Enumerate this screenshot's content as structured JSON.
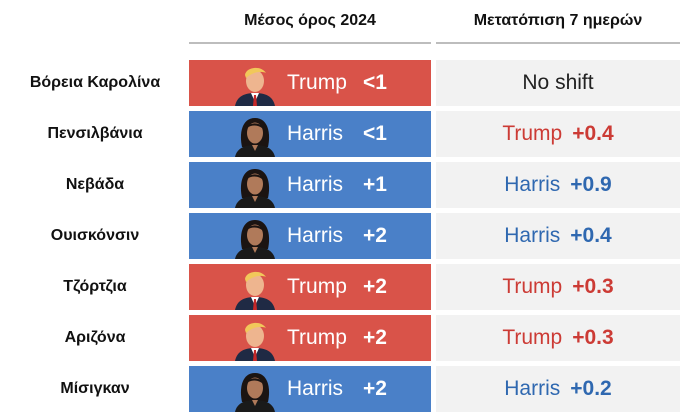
{
  "headers": {
    "average": "Μέσος όρος 2024",
    "shift": "Μετατόπιση 7 ημερών"
  },
  "colors": {
    "Trump": "#d95349",
    "Harris": "#4a80c8",
    "Trump_text": "#cc3b35",
    "Harris_text": "#2f68b0"
  },
  "rows": [
    {
      "state": "Βόρεια Καρολίνα",
      "leader": "Trump",
      "margin": "<1",
      "shift_leader": "",
      "shift_value": "",
      "shift_text": "No shift"
    },
    {
      "state": "Πενσιλβάνια",
      "leader": "Harris",
      "margin": "<1",
      "shift_leader": "Trump",
      "shift_value": "+0.4",
      "shift_text": ""
    },
    {
      "state": "Νεβάδα",
      "leader": "Harris",
      "margin": "+1",
      "shift_leader": "Harris",
      "shift_value": "+0.9",
      "shift_text": ""
    },
    {
      "state": "Ουισκόνσιν",
      "leader": "Harris",
      "margin": "+2",
      "shift_leader": "Harris",
      "shift_value": "+0.4",
      "shift_text": ""
    },
    {
      "state": "Τζόρτζια",
      "leader": "Trump",
      "margin": "+2",
      "shift_leader": "Trump",
      "shift_value": "+0.3",
      "shift_text": ""
    },
    {
      "state": "Αριζόνα",
      "leader": "Trump",
      "margin": "+2",
      "shift_leader": "Trump",
      "shift_value": "+0.3",
      "shift_text": ""
    },
    {
      "state": "Μίσιγκαν",
      "leader": "Harris",
      "margin": "+2",
      "shift_leader": "Harris",
      "shift_value": "+0.2",
      "shift_text": ""
    }
  ],
  "chart_data": {
    "type": "table",
    "columns": [
      "Μέσος όρος 2024",
      "Μετατόπιση 7 ημερών"
    ],
    "categories": [
      "Βόρεια Καρολίνα",
      "Πενσιλβάνια",
      "Νεβάδα",
      "Ουισκόνσιν",
      "Τζόρτζια",
      "Αριζόνα",
      "Μίσιγκαν"
    ],
    "average_leader": [
      "Trump",
      "Harris",
      "Harris",
      "Harris",
      "Trump",
      "Trump",
      "Harris"
    ],
    "average_margin": [
      "<1",
      "<1",
      "+1",
      "+2",
      "+2",
      "+2",
      "+2"
    ],
    "shift_leader": [
      "",
      "Trump",
      "Harris",
      "Harris",
      "Trump",
      "Trump",
      "Harris"
    ],
    "shift_value": [
      "No shift",
      "+0.4",
      "+0.9",
      "+0.4",
      "+0.3",
      "+0.3",
      "+0.2"
    ]
  }
}
